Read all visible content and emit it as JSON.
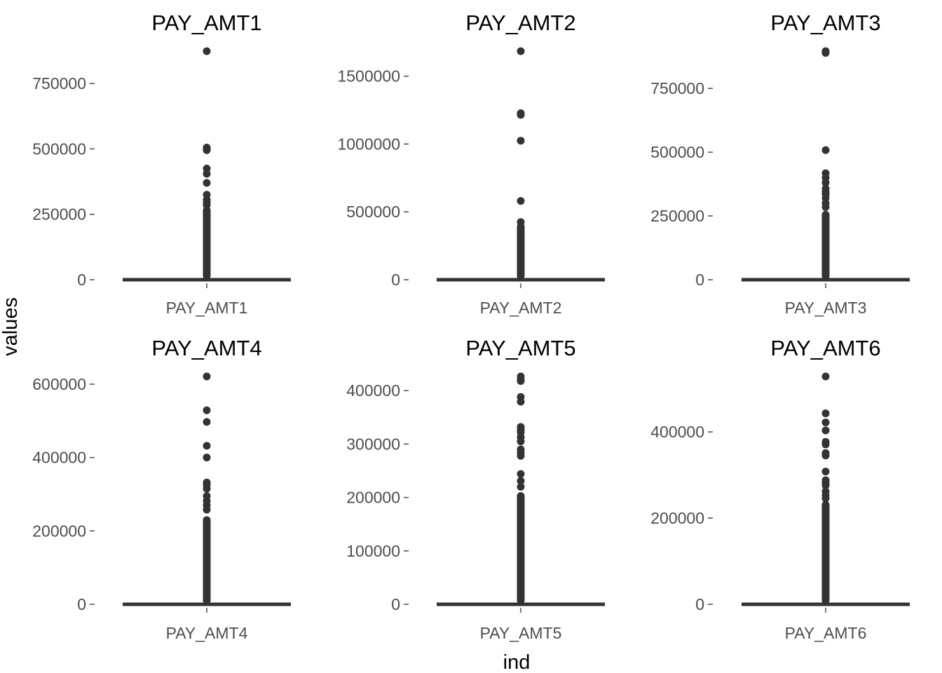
{
  "figure": {
    "xlabel": "ind",
    "ylabel": "values"
  },
  "style": {
    "mark_color": "#333333",
    "tick_color": "#4d4d4d"
  },
  "chart_data": [
    {
      "type": "box",
      "title": "PAY_AMT1",
      "categories": [
        "PAY_AMT1"
      ],
      "ylim": [
        0,
        873552
      ],
      "yticks": [
        0,
        250000,
        500000,
        750000
      ],
      "ytick_labels": [
        "0",
        "250000",
        "500000",
        "750000"
      ],
      "box": {
        "q1": 0,
        "median": 0,
        "q3": 0,
        "whisker_low": 0,
        "whisker_high": 0
      },
      "outlier_band": [
        0,
        280000
      ],
      "outliers": [
        873552,
        505000,
        500000,
        495000,
        425000,
        405000,
        370000,
        325000,
        305000,
        295000,
        285000
      ]
    },
    {
      "type": "box",
      "title": "PAY_AMT2",
      "categories": [
        "PAY_AMT2"
      ],
      "ylim": [
        0,
        1684259
      ],
      "yticks": [
        0,
        500000,
        1000000,
        1500000
      ],
      "ytick_labels": [
        "0",
        "500000",
        "1000000",
        "1500000"
      ],
      "box": {
        "q1": 0,
        "median": 0,
        "q3": 0,
        "whisker_low": 0,
        "whisker_high": 0
      },
      "outlier_band": [
        0,
        420000
      ],
      "outliers": [
        1684259,
        1227082,
        1215471,
        1024516,
        580464,
        425000
      ]
    },
    {
      "type": "box",
      "title": "PAY_AMT3",
      "categories": [
        "PAY_AMT3"
      ],
      "ylim": [
        0,
        896040
      ],
      "yticks": [
        0,
        250000,
        500000,
        750000
      ],
      "ytick_labels": [
        "0",
        "250000",
        "500000",
        "750000"
      ],
      "box": {
        "q1": 0,
        "median": 0,
        "q3": 0,
        "whisker_low": 0,
        "whisker_high": 0
      },
      "outlier_band": [
        0,
        270000
      ],
      "outliers": [
        896040,
        889043,
        508229,
        417588,
        400000,
        380478,
        357000,
        344000,
        335000,
        320000,
        300000,
        285000
      ]
    },
    {
      "type": "box",
      "title": "PAY_AMT4",
      "categories": [
        "PAY_AMT4"
      ],
      "ylim": [
        0,
        621000
      ],
      "yticks": [
        0,
        200000,
        400000,
        600000
      ],
      "ytick_labels": [
        "0",
        "200000",
        "400000",
        "600000"
      ],
      "box": {
        "q1": 0,
        "median": 0,
        "q3": 0,
        "whisker_low": 0,
        "whisker_high": 0
      },
      "outlier_band": [
        0,
        240000
      ],
      "outliers": [
        621000,
        528897,
        497000,
        432130,
        400046,
        332000,
        325000,
        315000,
        295000,
        282000,
        270000,
        258000
      ]
    },
    {
      "type": "box",
      "title": "PAY_AMT5",
      "categories": [
        "PAY_AMT5"
      ],
      "ylim": [
        0,
        426529
      ],
      "yticks": [
        0,
        100000,
        200000,
        300000,
        400000
      ],
      "ytick_labels": [
        "0",
        "100000",
        "200000",
        "300000",
        "400000"
      ],
      "box": {
        "q1": 0,
        "median": 0,
        "q3": 0,
        "whisker_low": 0,
        "whisker_high": 0
      },
      "outlier_band": [
        0,
        210000
      ],
      "outliers": [
        426529,
        421000,
        417990,
        388071,
        379267,
        332000,
        326889,
        322000,
        313094,
        305000,
        290000,
        284000,
        278000,
        244000,
        231000,
        220000
      ]
    },
    {
      "type": "box",
      "title": "PAY_AMT6",
      "categories": [
        "PAY_AMT6"
      ],
      "ylim": [
        0,
        528666
      ],
      "yticks": [
        0,
        200000,
        400000
      ],
      "ytick_labels": [
        "0",
        "200000",
        "400000"
      ],
      "box": {
        "q1": 0,
        "median": 0,
        "q3": 0,
        "whisker_low": 0,
        "whisker_high": 0
      },
      "outlier_band": [
        0,
        240000
      ],
      "outliers": [
        528666,
        443001,
        422000,
        403500,
        377000,
        371000,
        351000,
        345293,
        308000,
        288000,
        282000,
        276000,
        262000,
        253000,
        246000
      ]
    }
  ]
}
